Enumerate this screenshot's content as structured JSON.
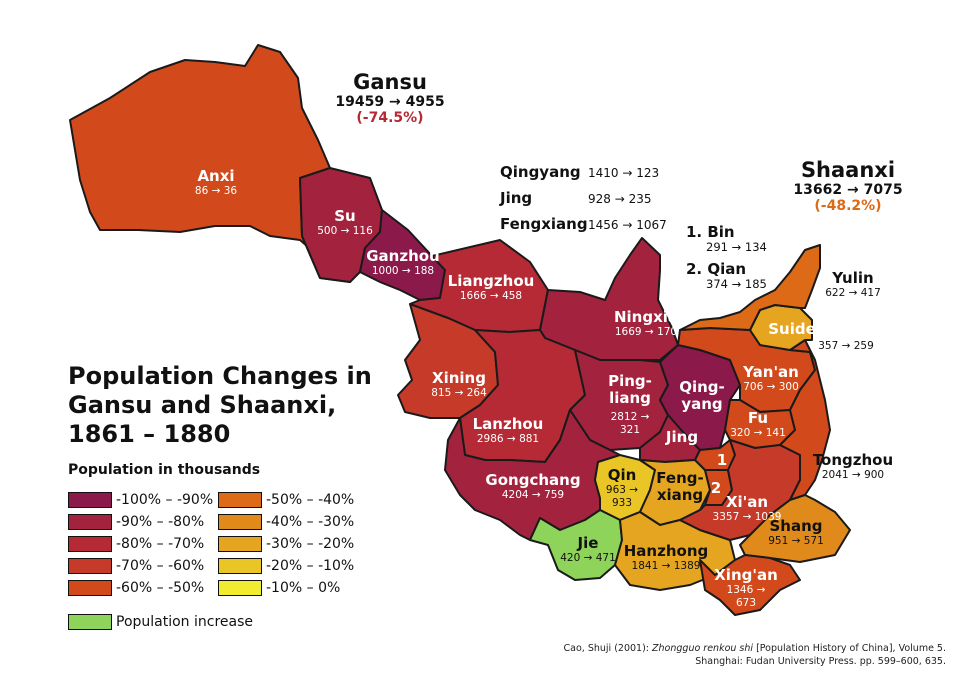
{
  "title_lines": [
    "Population Changes in",
    "Gansu and Shaanxi,",
    "1861 – 1880"
  ],
  "legend": {
    "title": "Population in thousands",
    "items": [
      {
        "label": "-100% – -90%",
        "color": "#8b1a4a"
      },
      {
        "label": "-90% – -80%",
        "color": "#a3233e"
      },
      {
        "label": "-80% – -70%",
        "color": "#b52a35"
      },
      {
        "label": "-70% – -60%",
        "color": "#c63a2a"
      },
      {
        "label": "-60% – -50%",
        "color": "#d24a1c"
      },
      {
        "label": "-50% – -40%",
        "color": "#dc6a16"
      },
      {
        "label": "-40% – -30%",
        "color": "#e08a1c"
      },
      {
        "label": "-30% – -20%",
        "color": "#e6a521"
      },
      {
        "label": "-20% – -10%",
        "color": "#e9c526"
      },
      {
        "label": "-10% – 0%",
        "color": "#f2ec30"
      }
    ],
    "increase": {
      "label": "Population increase",
      "color": "#8ed45a"
    }
  },
  "provinces": {
    "gansu": {
      "name": "Gansu",
      "values": "19459 → 4955",
      "pct": "(-74.5%)",
      "pct_color": "#b52a35"
    },
    "shaanxi": {
      "name": "Shaanxi",
      "values": "13662 → 7075",
      "pct": "(-48.2%)",
      "pct_color": "#dc6a16"
    }
  },
  "side_list": [
    {
      "name": "Qingyang",
      "values": "1410 → 123"
    },
    {
      "name": "Jing",
      "values": "928 → 235"
    },
    {
      "name": "Fengxiang",
      "values": "1456 → 1067"
    }
  ],
  "numbered_list": [
    {
      "name": "1. Bin",
      "values": "291 → 134"
    },
    {
      "name": "2. Qian",
      "values": "374 → 185"
    }
  ],
  "regions": {
    "anxi": {
      "name": "Anxi",
      "values": "86 → 36"
    },
    "su": {
      "name": "Su",
      "values": "500 → 116"
    },
    "ganzhou": {
      "name": "Ganzhou",
      "values": "1000 → 188"
    },
    "liangzhou": {
      "name": "Liangzhou",
      "values": "1666 → 458"
    },
    "ningxia": {
      "name": "Ningxia",
      "values": "1669 → 170"
    },
    "xining": {
      "name": "Xining",
      "values": "815 → 264"
    },
    "pingliang": {
      "name1": "Ping-",
      "name2": "liang",
      "values": "2812 →",
      "values2": "321"
    },
    "qingyang": {
      "name1": "Qing-",
      "name2": "yang"
    },
    "lanzhou": {
      "name": "Lanzhou",
      "values": "2986 → 881"
    },
    "jing": {
      "name": "Jing"
    },
    "gongchang": {
      "name": "Gongchang",
      "values": "4204 → 759"
    },
    "qin": {
      "name": "Qin",
      "values": "963 →",
      "values2": "933"
    },
    "jie": {
      "name": "Jie",
      "values": "420 → 471"
    },
    "fengxiang": {
      "name1": "Feng-",
      "name2": "xiang"
    },
    "hanzhong": {
      "name": "Hanzhong",
      "values": "1841 → 1389"
    },
    "yanan": {
      "name": "Yan'an",
      "values": "706 → 300"
    },
    "fu": {
      "name": "Fu",
      "values": "320 → 141"
    },
    "xian": {
      "name": "Xi'an",
      "values": "3357 → 1039"
    },
    "shang": {
      "name": "Shang",
      "values": "951 → 571"
    },
    "xingan": {
      "name": "Xing'an",
      "values": "1346 →",
      "values2": "673"
    },
    "suide": {
      "name": "Suide",
      "values": "357 → 259"
    },
    "yulin": {
      "name": "Yulin",
      "values": "622 → 417"
    },
    "tongzhou": {
      "name": "Tongzhou",
      "values": "2041 → 900"
    },
    "bin": {
      "name": "1"
    },
    "qian": {
      "name": "2"
    }
  },
  "source": {
    "line1_pre": "Cao, Shuji (2001): ",
    "line1_italic": "Zhongguo renkou shi",
    "line1_post": " [Population History of China], Volume 5.",
    "line2": "Shanghai: Fudan University Press. pp. 599–600, 635."
  }
}
